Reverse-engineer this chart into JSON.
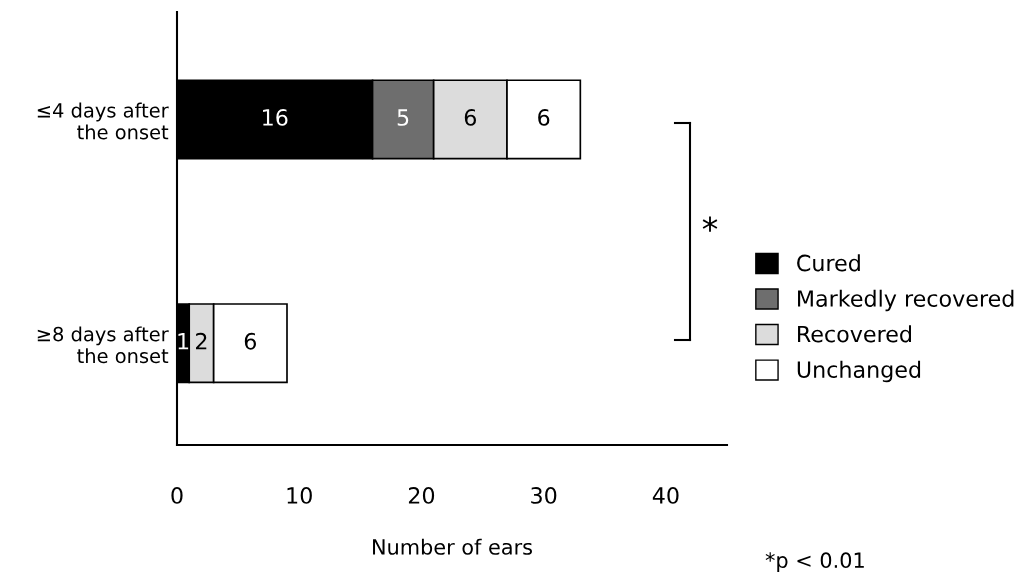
{
  "chart_data": {
    "type": "bar",
    "orientation": "horizontal",
    "stacked": true,
    "categories": [
      "≤4 days after\nthe onset",
      "≥8 days after\nthe onset"
    ],
    "series": [
      {
        "name": "Cured",
        "color": "#000000",
        "values": [
          16,
          1
        ],
        "value_labels": [
          "16",
          "1"
        ]
      },
      {
        "name": "Markedly recovered",
        "color": "#6e6e6e",
        "values": [
          5,
          0
        ],
        "value_labels": [
          "5",
          null
        ]
      },
      {
        "name": "Recovered",
        "color": "#dcdcdc",
        "values": [
          6,
          2
        ],
        "value_labels": [
          "6",
          "2"
        ]
      },
      {
        "name": "Unchanged",
        "color": "#ffffff",
        "values": [
          6,
          6
        ],
        "value_labels": [
          "6",
          "6"
        ]
      }
    ],
    "xlabel": "Number of ears",
    "xlim": [
      0,
      45
    ],
    "xticks": [
      0,
      10,
      20,
      30,
      40
    ],
    "grid": false,
    "legend": "right",
    "annotations": [
      "*",
      "*p < 0.01"
    ]
  }
}
